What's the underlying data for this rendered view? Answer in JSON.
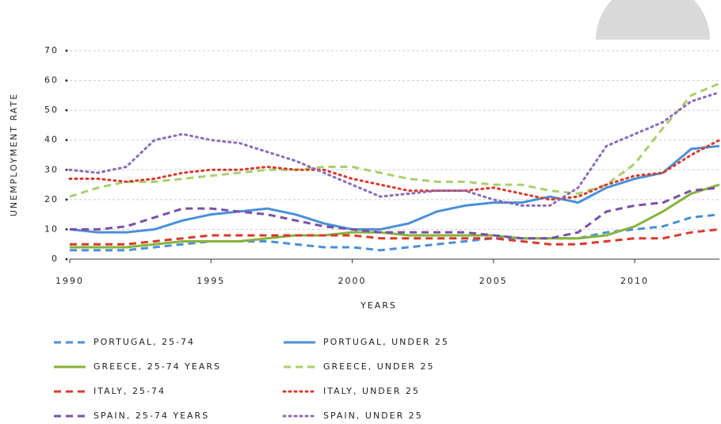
{
  "chart_data": {
    "type": "line",
    "x_label": "YEARS",
    "y_label": "UNEMPLOYMENT RATE",
    "x": [
      1990,
      1991,
      1992,
      1993,
      1994,
      1995,
      1996,
      1997,
      1998,
      1999,
      2000,
      2001,
      2002,
      2003,
      2004,
      2005,
      2006,
      2007,
      2008,
      2009,
      2010,
      2011,
      2012,
      2013
    ],
    "xlim": [
      1990,
      2013
    ],
    "xticks": [
      1990,
      1995,
      2000,
      2005,
      2010
    ],
    "ylim": [
      0,
      70
    ],
    "yticks": [
      0,
      10,
      20,
      30,
      40,
      50,
      60,
      70
    ],
    "grid": true,
    "series": [
      {
        "name": "PORTUGAL, 25-74",
        "color": "#4a8fd8",
        "style": "dashed",
        "values": [
          3,
          3,
          3,
          4,
          5,
          6,
          6,
          6,
          5,
          4,
          4,
          3,
          4,
          5,
          6,
          7,
          7,
          7,
          7,
          9,
          10,
          11,
          14,
          15
        ]
      },
      {
        "name": "PORTUGAL, UNDER 25",
        "color": "#4a8fd8",
        "style": "solid",
        "values": [
          10,
          9,
          9,
          10,
          13,
          15,
          16,
          17,
          15,
          12,
          10,
          10,
          12,
          16,
          18,
          19,
          19,
          21,
          19,
          24,
          27,
          29,
          37,
          38
        ]
      },
      {
        "name": "GREECE, 25-74 YEARS",
        "color": "#86b33a",
        "style": "solid",
        "values": [
          4,
          4,
          4,
          5,
          6,
          6,
          6,
          7,
          8,
          8,
          9,
          9,
          8,
          8,
          8,
          8,
          7,
          7,
          7,
          8,
          11,
          16,
          22,
          25
        ]
      },
      {
        "name": "GREECE, UNDER 25",
        "color": "#a9cf6a",
        "style": "dashed",
        "values": [
          21,
          24,
          26,
          26,
          27,
          28,
          29,
          30,
          30,
          31,
          31,
          29,
          27,
          26,
          26,
          25,
          25,
          23,
          22,
          25,
          32,
          44,
          55,
          59
        ]
      },
      {
        "name": "ITALY, 25-74",
        "color": "#d9392b",
        "style": "dashed",
        "values": [
          5,
          5,
          5,
          6,
          7,
          8,
          8,
          8,
          8,
          8,
          8,
          7,
          7,
          7,
          7,
          7,
          6,
          5,
          5,
          6,
          7,
          7,
          9,
          10
        ]
      },
      {
        "name": "ITALY, UNDER 25",
        "color": "#d9392b",
        "style": "dotted",
        "values": [
          27,
          27,
          26,
          27,
          29,
          30,
          30,
          31,
          30,
          30,
          27,
          25,
          23,
          23,
          23,
          24,
          22,
          20,
          21,
          25,
          28,
          29,
          35,
          40
        ]
      },
      {
        "name": "SPAIN, 25-74 YEARS",
        "color": "#7b4fa8",
        "style": "dashed",
        "values": [
          10,
          10,
          11,
          14,
          17,
          17,
          16,
          15,
          13,
          11,
          10,
          9,
          9,
          9,
          9,
          8,
          7,
          7,
          9,
          16,
          18,
          19,
          23,
          24
        ]
      },
      {
        "name": "SPAIN, UNDER 25",
        "color": "#8c6bb8",
        "style": "dotted",
        "values": [
          30,
          29,
          31,
          40,
          42,
          40,
          39,
          36,
          33,
          29,
          25,
          21,
          22,
          23,
          23,
          20,
          18,
          18,
          24,
          38,
          42,
          46,
          53,
          56
        ]
      }
    ]
  }
}
